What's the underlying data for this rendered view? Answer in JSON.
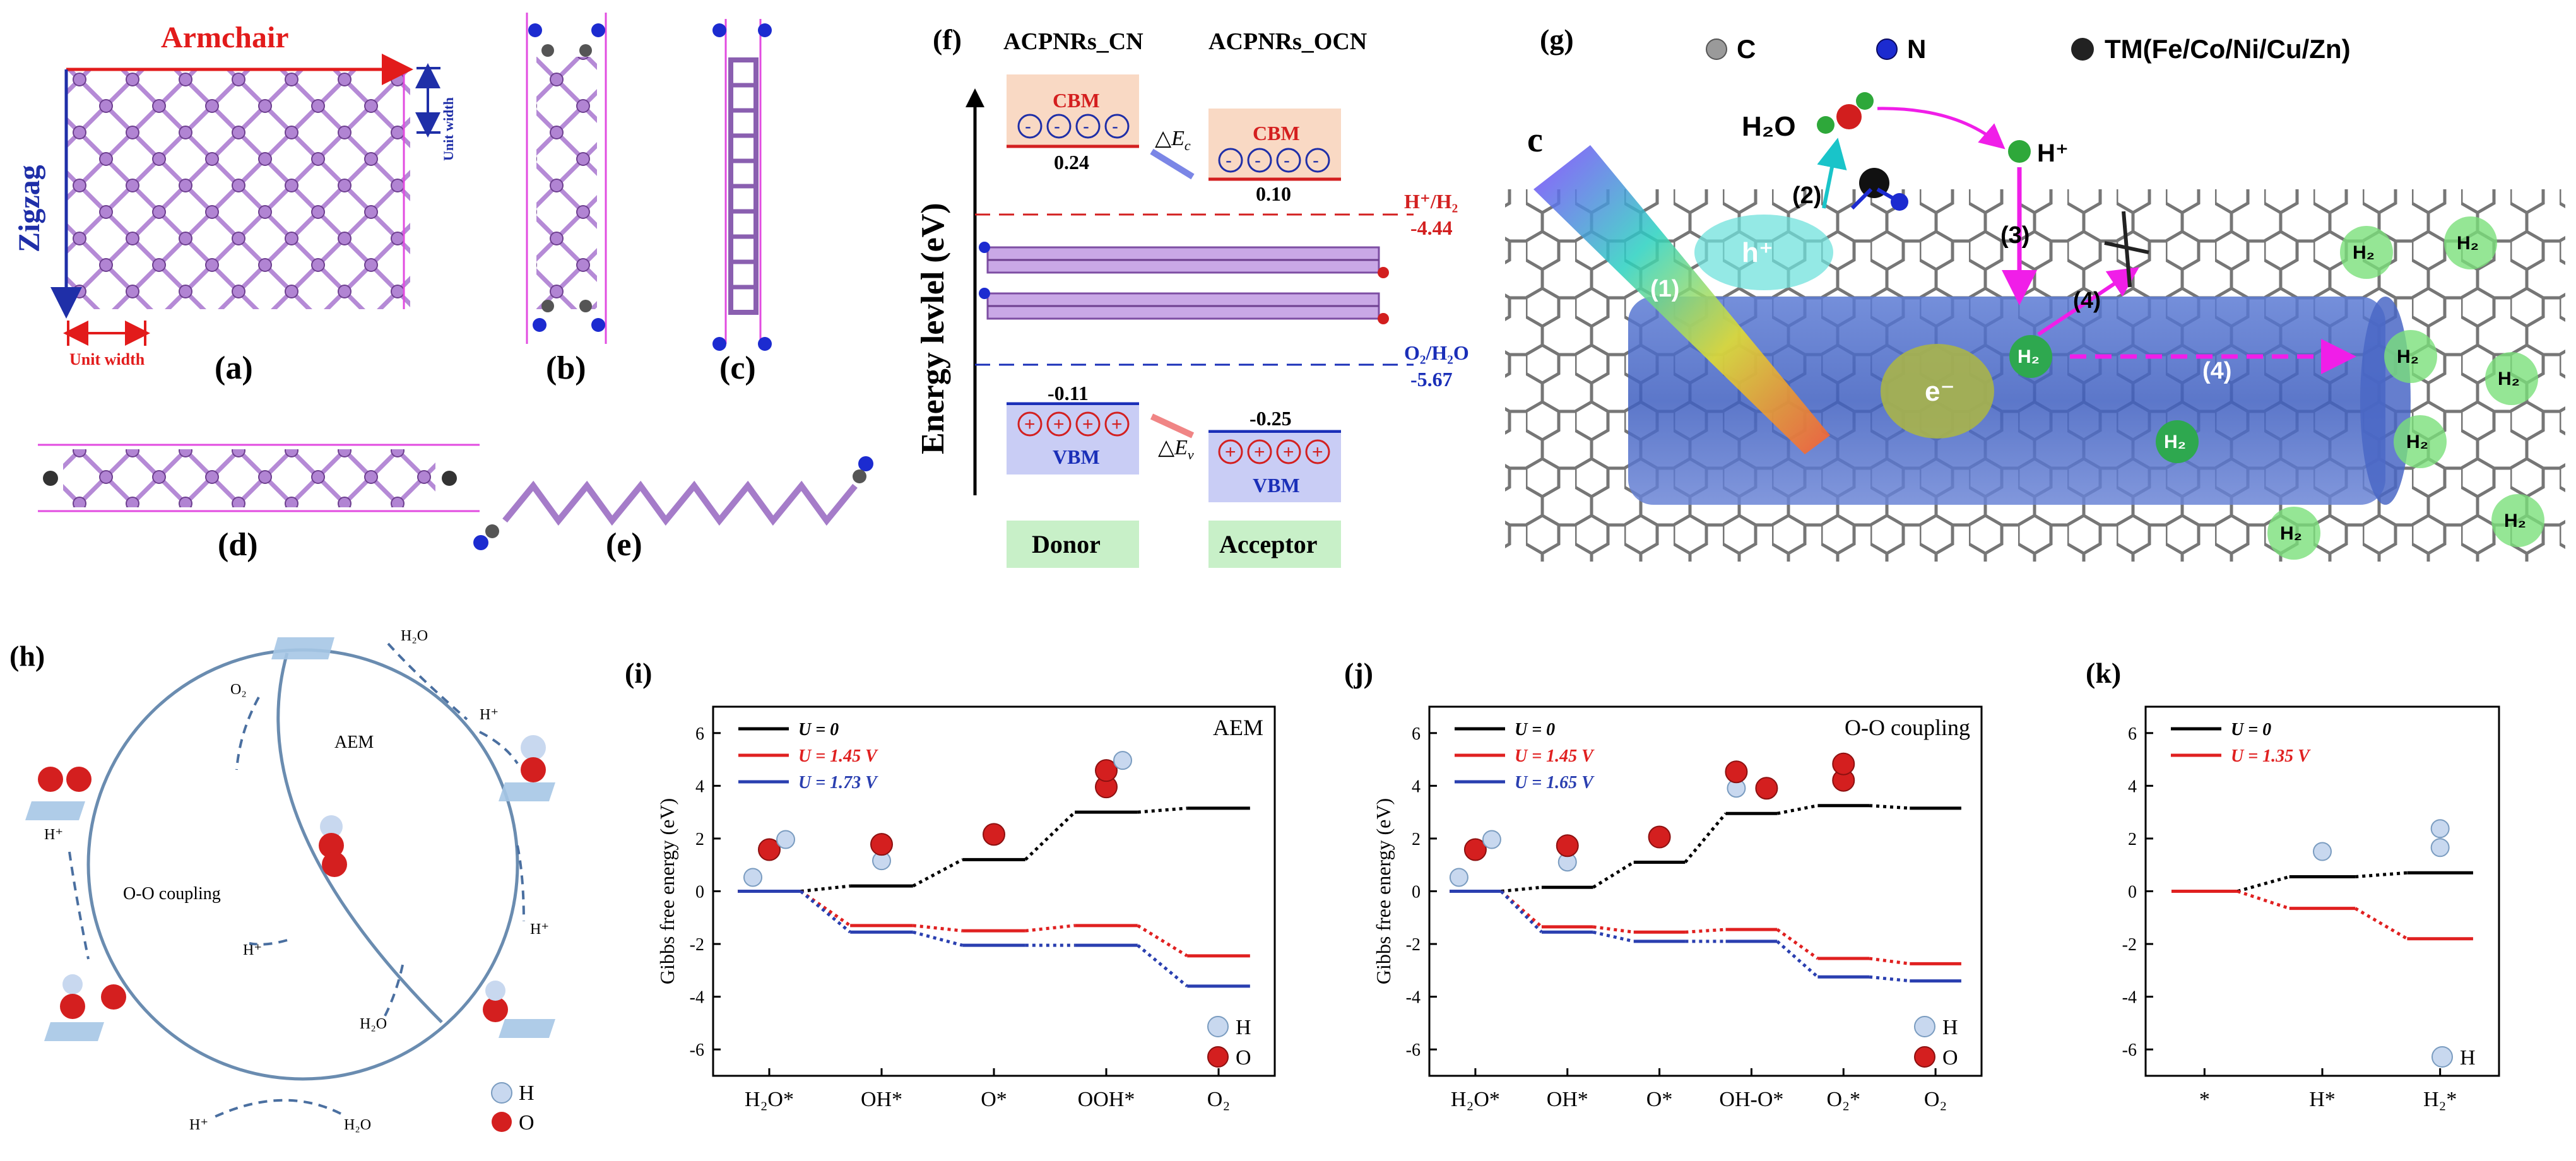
{
  "panels": {
    "a": {
      "label": "(a)",
      "armchair": "Armchair",
      "zigzag": "Zigzag",
      "unit_width_top": "Unit width",
      "unit_width_bottom": "Unit width"
    },
    "b": {
      "label": "(b)"
    },
    "c": {
      "label": "(c)"
    },
    "d": {
      "label": "(d)"
    },
    "e": {
      "label": "(e)"
    },
    "f": {
      "label": "(f)",
      "title_left": "ACPNRs_CN",
      "title_right": "ACPNRs_OCN",
      "y_axis": "Energy levlel (eV)",
      "cbm": "CBM",
      "vbm": "VBM",
      "cbm_left_value": "0.24",
      "cbm_right_value": "0.10",
      "vbm_left_value": "-0.11",
      "vbm_right_value": "-0.25",
      "delta_ec": "△E",
      "delta_ec_sub": "c",
      "delta_ev": "△E",
      "delta_ev_sub": "v",
      "h_level_label": "H⁺/H₂",
      "h_level_value": "-4.44",
      "o_level_label": "O₂/H₂O",
      "o_level_value": "-5.67",
      "donor": "Donor",
      "acceptor": "Acceptor",
      "colors": {
        "cbm_box": "#f9d9c4",
        "vbm_box": "#c9cdf5",
        "donor_box": "#c8f0c8",
        "red_line": "#d32020",
        "blue_line": "#1a2fb8"
      }
    },
    "g": {
      "label": "(g)",
      "legend_c": "C",
      "legend_n": "N",
      "legend_tm": "TM(Fe/Co/Ni/Cu/Zn)",
      "c_mark": "c",
      "h2o": "H₂O",
      "h_plus": "H⁺",
      "h_hole": "h⁺",
      "e_minus": "e⁻",
      "step1": "(1)",
      "step2": "(2)",
      "step3": "(3)",
      "step4a": "(4)",
      "step4b": "(4)",
      "h2": "H₂"
    },
    "h": {
      "label": "(h)",
      "aem": "AEM",
      "oo_coupling": "O-O coupling",
      "o2": "O₂",
      "h2o_top": "H₂O",
      "h2o_bottom": "H₂O",
      "h2o_inner": "H₂O",
      "h_plus_1": "H⁺",
      "h_plus_2": "H⁺",
      "h_plus_3": "H⁺",
      "h_plus_4": "H⁺",
      "h_plus_5": "H⁺",
      "legend_h": "H",
      "legend_o": "O"
    },
    "i": {
      "label": "(i)"
    },
    "j": {
      "label": "(j)"
    },
    "k": {
      "label": "(k)"
    }
  },
  "chart_data": [
    {
      "panel": "i",
      "type": "line",
      "title": "AEM",
      "xlabel": "",
      "ylabel": "Gibbs free energy (eV)",
      "categories": [
        "H₂O*",
        "OH*",
        "O*",
        "OOH*",
        "O₂"
      ],
      "ylim": [
        -7,
        7
      ],
      "yticks": [
        -6,
        -4,
        -2,
        0,
        2,
        4,
        6
      ],
      "series": [
        {
          "name": "U = 0",
          "color": "#000000",
          "values": [
            0,
            0.2,
            1.2,
            3.0,
            3.15
          ]
        },
        {
          "name": "U = 1.45 V",
          "color": "#e02020",
          "values": [
            0,
            -1.3,
            -1.5,
            -1.3,
            -2.45
          ]
        },
        {
          "name": "U = 1.73 V",
          "color": "#2a3fb0",
          "values": [
            0,
            -1.55,
            -2.05,
            -2.05,
            -3.6
          ]
        }
      ],
      "legend": [
        "H",
        "O"
      ]
    },
    {
      "panel": "j",
      "type": "line",
      "title": "O-O coupling",
      "xlabel": "",
      "ylabel": "Gibbs free energy (eV)",
      "categories": [
        "H₂O*",
        "OH*",
        "O*",
        "OH-O*",
        "O₂*",
        "O₂"
      ],
      "ylim": [
        -7,
        7
      ],
      "yticks": [
        -6,
        -4,
        -2,
        0,
        2,
        4,
        6
      ],
      "series": [
        {
          "name": "U = 0",
          "color": "#000000",
          "values": [
            0,
            0.15,
            1.1,
            2.95,
            3.25,
            3.15
          ]
        },
        {
          "name": "U = 1.45 V",
          "color": "#e02020",
          "values": [
            0,
            -1.35,
            -1.55,
            -1.45,
            -2.55,
            -2.75
          ]
        },
        {
          "name": "U = 1.65 V",
          "color": "#2a3fb0",
          "values": [
            0,
            -1.55,
            -1.9,
            -1.9,
            -3.25,
            -3.4
          ]
        }
      ],
      "legend": [
        "H",
        "O"
      ]
    },
    {
      "panel": "k",
      "type": "line",
      "title": "",
      "xlabel": "",
      "ylabel": "",
      "categories": [
        "*",
        "H*",
        "H₂*"
      ],
      "ylim": [
        -7,
        7
      ],
      "yticks": [
        -6,
        -4,
        -2,
        0,
        2,
        4,
        6
      ],
      "series": [
        {
          "name": "U = 0",
          "color": "#000000",
          "values": [
            0,
            0.55,
            0.7
          ]
        },
        {
          "name": "U = 1.35 V",
          "color": "#e02020",
          "values": [
            0,
            -0.65,
            -1.8
          ]
        }
      ],
      "legend": [
        "H"
      ]
    }
  ]
}
